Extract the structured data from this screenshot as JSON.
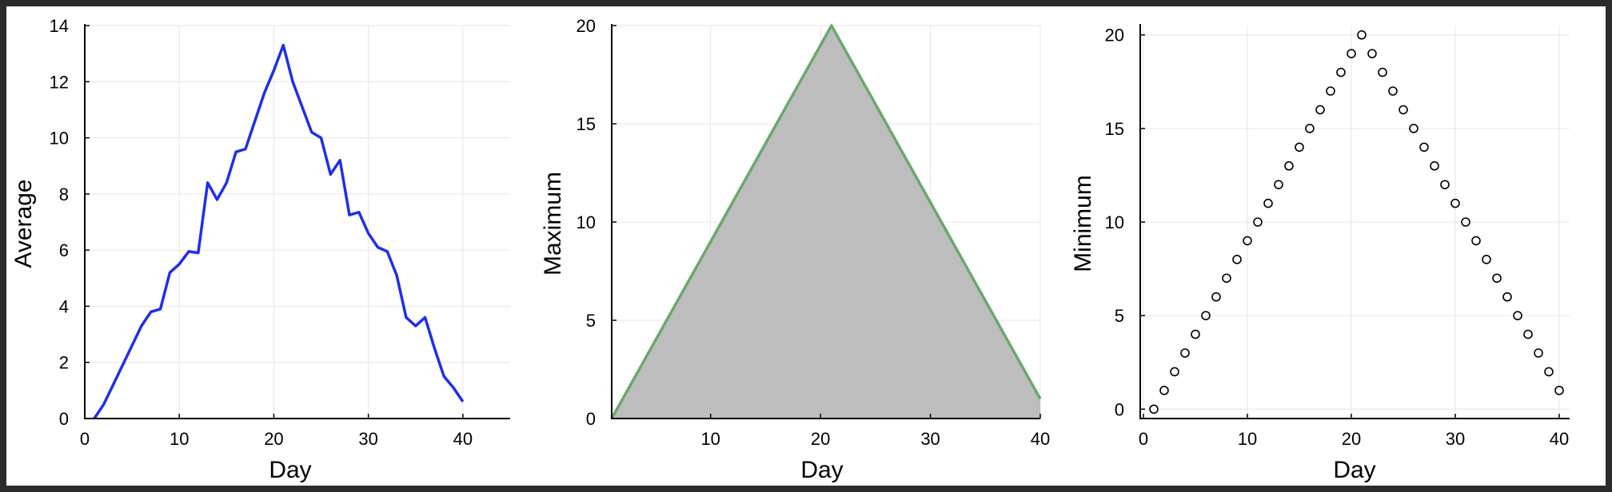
{
  "chart_data": [
    {
      "type": "line",
      "xlabel": "Day",
      "ylabel": "Average",
      "xlim": [
        0,
        45
      ],
      "ylim": [
        0,
        14
      ],
      "xticks": [
        "0",
        "10",
        "20",
        "30",
        "40"
      ],
      "yticks": [
        "0",
        "2",
        "4",
        "6",
        "8",
        "10",
        "12",
        "14"
      ],
      "grid": true,
      "color": "#1f2fe6",
      "x": [
        1,
        2,
        3,
        4,
        5,
        6,
        7,
        8,
        9,
        10,
        11,
        12,
        13,
        14,
        15,
        16,
        17,
        18,
        19,
        20,
        21,
        22,
        23,
        24,
        25,
        26,
        27,
        28,
        29,
        30,
        31,
        32,
        33,
        34,
        35,
        36,
        37,
        38,
        39,
        40
      ],
      "y": [
        0.0,
        0.5,
        1.2,
        1.9,
        2.6,
        3.3,
        3.8,
        3.9,
        5.2,
        5.5,
        5.95,
        5.9,
        8.4,
        7.8,
        8.4,
        9.5,
        9.6,
        10.6,
        11.6,
        12.4,
        13.3,
        12.0,
        11.1,
        10.2,
        10.0,
        8.7,
        9.2,
        7.25,
        7.35,
        6.6,
        6.1,
        5.95,
        5.1,
        3.6,
        3.3,
        3.6,
        2.5,
        1.5,
        1.1,
        0.6
      ]
    },
    {
      "type": "area",
      "xlabel": "Day",
      "ylabel": "Maximum",
      "xlim": [
        1,
        40
      ],
      "ylim": [
        0,
        20
      ],
      "xticks": [
        "10",
        "20",
        "30",
        "40"
      ],
      "yticks": [
        "0",
        "5",
        "10",
        "15",
        "20"
      ],
      "grid": true,
      "line_color": "#6aa86a",
      "fill_color": "#bdbdbd",
      "x": [
        1,
        2,
        3,
        4,
        5,
        6,
        7,
        8,
        9,
        10,
        11,
        12,
        13,
        14,
        15,
        16,
        17,
        18,
        19,
        20,
        21,
        22,
        23,
        24,
        25,
        26,
        27,
        28,
        29,
        30,
        31,
        32,
        33,
        34,
        35,
        36,
        37,
        38,
        39,
        40
      ],
      "y": [
        0,
        1,
        2,
        3,
        4,
        5,
        6,
        7,
        8,
        9,
        10,
        11,
        12,
        13,
        14,
        15,
        16,
        17,
        18,
        19,
        20,
        19,
        18,
        17,
        16,
        15,
        14,
        13,
        12,
        11,
        10,
        9,
        8,
        7,
        6,
        5,
        4,
        3,
        2,
        1
      ]
    },
    {
      "type": "scatter",
      "xlabel": "Day",
      "ylabel": "Minimum",
      "xlim": [
        0,
        41
      ],
      "ylim": [
        -0.5,
        20.5
      ],
      "xticks": [
        "0",
        "10",
        "20",
        "30",
        "40"
      ],
      "yticks": [
        "0",
        "5",
        "10",
        "15",
        "20"
      ],
      "grid": true,
      "marker": "open-circle",
      "x": [
        1,
        2,
        3,
        4,
        5,
        6,
        7,
        8,
        9,
        10,
        11,
        12,
        13,
        14,
        15,
        16,
        17,
        18,
        19,
        20,
        21,
        22,
        23,
        24,
        25,
        26,
        27,
        28,
        29,
        30,
        31,
        32,
        33,
        34,
        35,
        36,
        37,
        38,
        39,
        40
      ],
      "y": [
        0,
        1,
        2,
        3,
        4,
        5,
        6,
        7,
        8,
        9,
        10,
        11,
        12,
        13,
        14,
        15,
        16,
        17,
        18,
        19,
        20,
        19,
        18,
        17,
        16,
        15,
        14,
        13,
        12,
        11,
        10,
        9,
        8,
        7,
        6,
        5,
        4,
        3,
        2,
        1
      ]
    }
  ]
}
